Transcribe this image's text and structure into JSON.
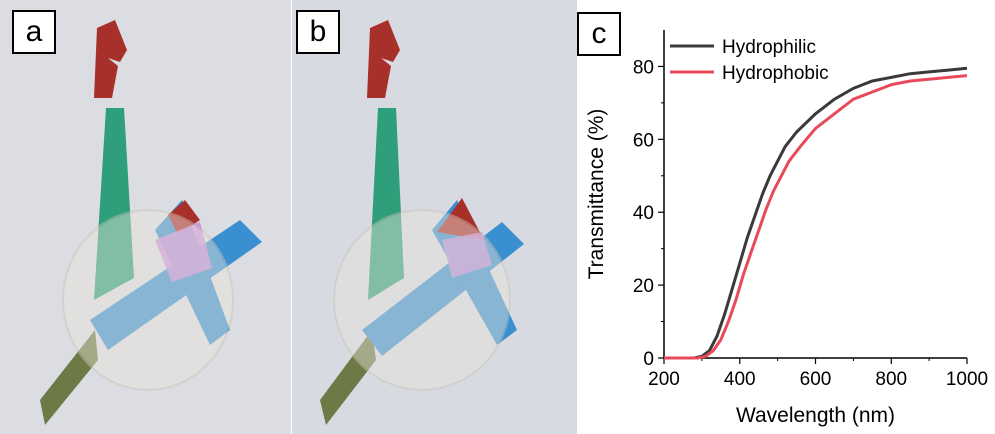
{
  "panels": {
    "a": {
      "label": "a"
    },
    "b": {
      "label": "b"
    },
    "c": {
      "label": "c"
    }
  },
  "colors": {
    "paper": "#dcdde3",
    "flame": "#a8302a",
    "green": "#2f9e7a",
    "blue": "#3a8fd0",
    "olive": "#6d7a45",
    "pink": "#c88ad8",
    "film": "#e8e4da",
    "hydrophilic": "#3a3a3a",
    "hydrophobic": "#e84a5a"
  },
  "chart_data": {
    "type": "line",
    "xlabel": "Wavelength (nm)",
    "ylabel": "Transmittance (%)",
    "xlim": [
      200,
      1000
    ],
    "ylim": [
      0,
      90
    ],
    "xticks": [
      200,
      400,
      600,
      800,
      1000
    ],
    "yticks": [
      0,
      20,
      40,
      60,
      80
    ],
    "legend_position": "top-left",
    "grid": false,
    "series": [
      {
        "name": "Hydrophilic",
        "color": "#3a3a3a",
        "x": [
          200,
          280,
          300,
          320,
          340,
          360,
          380,
          400,
          420,
          440,
          460,
          480,
          500,
          520,
          550,
          600,
          650,
          700,
          750,
          800,
          850,
          900,
          950,
          1000
        ],
        "y": [
          0,
          0,
          0.5,
          2,
          6,
          12,
          19,
          26,
          33,
          39,
          45,
          50,
          54,
          58,
          62,
          67,
          71,
          74,
          76,
          77,
          78,
          78.5,
          79,
          79.5
        ]
      },
      {
        "name": "Hydrophobic",
        "color": "#e84a5a",
        "x": [
          200,
          290,
          310,
          330,
          350,
          370,
          390,
          410,
          430,
          450,
          470,
          490,
          510,
          530,
          560,
          600,
          650,
          700,
          750,
          800,
          850,
          900,
          950,
          1000
        ],
        "y": [
          0,
          0,
          0.5,
          2,
          5,
          10,
          16,
          23,
          29,
          35,
          41,
          46,
          50,
          54,
          58,
          63,
          67,
          71,
          73,
          75,
          76,
          76.5,
          77,
          77.5
        ]
      }
    ]
  }
}
